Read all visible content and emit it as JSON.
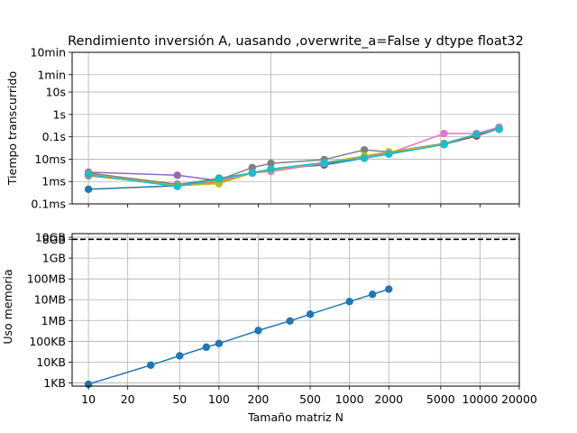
{
  "chart_data": [
    {
      "type": "line",
      "title": "Rendimiento inversión A, uasando ,overwrite_a=False y dtype float32",
      "xlabel": "",
      "ylabel": "Tiempo transcurrido",
      "xscale": "log",
      "yscale": "log",
      "xlim": [
        7.5,
        20000
      ],
      "ylim": [
        0.0001,
        600
      ],
      "yticks": [
        {
          "value": 0.0001,
          "label": "0.1ms"
        },
        {
          "value": 0.001,
          "label": "1ms"
        },
        {
          "value": 0.01,
          "label": "10ms"
        },
        {
          "value": 0.1,
          "label": "0.1s"
        },
        {
          "value": 1,
          "label": "1s"
        },
        {
          "value": 10,
          "label": "10s"
        },
        {
          "value": 60,
          "label": "1min"
        },
        {
          "value": 600,
          "label": "10min"
        }
      ],
      "xgrid": [
        10,
        250,
        5000
      ],
      "grid": true,
      "series": [
        {
          "color": "#1f77b4",
          "x": [
            10,
            48,
            100,
            180,
            250,
            640,
            1300,
            2000,
            5300,
            9400,
            14000
          ],
          "y": [
            0.00045,
            0.00065,
            0.0009,
            0.0024,
            0.0036,
            0.0055,
            0.011,
            0.017,
            0.045,
            0.13,
            0.22
          ]
        },
        {
          "color": "#ff7f0e",
          "x": [
            10,
            48,
            100,
            180,
            250,
            640,
            1300,
            2000,
            5300,
            9400,
            14000
          ],
          "y": [
            0.0018,
            0.0007,
            0.0009,
            0.0025,
            0.0035,
            0.007,
            0.013,
            0.02,
            0.047,
            0.11,
            0.25
          ]
        },
        {
          "color": "#2ca02c",
          "x": [
            10,
            48,
            100,
            180,
            250,
            640,
            1300,
            2000,
            5300,
            9400,
            14000
          ],
          "y": [
            0.0022,
            0.0007,
            0.0014,
            0.0024,
            0.0033,
            0.0065,
            0.012,
            0.018,
            0.045,
            0.12,
            0.22
          ]
        },
        {
          "color": "#d62728",
          "x": [
            10,
            48,
            100,
            180,
            250,
            640,
            1300,
            2000,
            5300,
            9400,
            14000
          ],
          "y": [
            0.0021,
            0.00065,
            0.0012,
            0.0024,
            0.0034,
            0.0065,
            0.012,
            0.018,
            0.046,
            0.11,
            0.23
          ]
        },
        {
          "color": "#9467bd",
          "x": [
            10,
            48,
            100,
            180,
            250,
            640,
            1300,
            2000,
            5300,
            9400,
            14000
          ],
          "y": [
            0.0026,
            0.0019,
            0.0011,
            0.0025,
            0.0033,
            0.0065,
            0.012,
            0.018,
            0.046,
            0.13,
            0.23
          ]
        },
        {
          "color": "#8c564b",
          "x": [
            10,
            48,
            100,
            180,
            250,
            640,
            1300,
            2000,
            5300,
            9400,
            14000
          ],
          "y": [
            0.0022,
            0.0007,
            0.0012,
            0.0024,
            0.0033,
            0.0065,
            0.012,
            0.018,
            0.046,
            0.11,
            0.24
          ]
        },
        {
          "color": "#e377c2",
          "x": [
            10,
            48,
            100,
            180,
            250,
            640,
            1300,
            2000,
            5300,
            9400,
            14000
          ],
          "y": [
            0.0022,
            0.0007,
            0.0011,
            0.0024,
            0.0028,
            0.0065,
            0.012,
            0.018,
            0.14,
            0.14,
            0.27
          ]
        },
        {
          "color": "#7f7f7f",
          "x": [
            10,
            48,
            100,
            180,
            250,
            640,
            1300,
            2000,
            5300,
            9400,
            14000
          ],
          "y": [
            0.0024,
            0.00075,
            0.0012,
            0.0042,
            0.0065,
            0.0095,
            0.026,
            0.021,
            0.05,
            0.13,
            0.23
          ]
        },
        {
          "color": "#bcbd22",
          "x": [
            10,
            48,
            100,
            180,
            250,
            640,
            1300,
            2000,
            5300,
            9400,
            14000
          ],
          "y": [
            0.0021,
            0.00065,
            0.0008,
            0.0024,
            0.0033,
            0.007,
            0.014,
            0.021,
            0.046,
            0.13,
            0.22
          ]
        },
        {
          "color": "#17becf",
          "x": [
            10,
            48,
            100,
            180,
            250,
            640,
            1300,
            2000,
            5300,
            9400,
            14000
          ],
          "y": [
            0.002,
            0.0006,
            0.0013,
            0.0024,
            0.0036,
            0.007,
            0.011,
            0.017,
            0.045,
            0.13,
            0.22
          ]
        }
      ]
    },
    {
      "type": "line",
      "title": "",
      "xlabel": "Tamaño matriz N",
      "ylabel": "Uso memoria",
      "xscale": "log",
      "yscale": "log",
      "xlim": [
        7.5,
        20000
      ],
      "ylim": [
        700,
        15000000000
      ],
      "xticks": [
        {
          "value": 10,
          "label": "10"
        },
        {
          "value": 20,
          "label": "20"
        },
        {
          "value": 50,
          "label": "50"
        },
        {
          "value": 100,
          "label": "100"
        },
        {
          "value": 200,
          "label": "200"
        },
        {
          "value": 500,
          "label": "500"
        },
        {
          "value": 1000,
          "label": "1000"
        },
        {
          "value": 2000,
          "label": "2000"
        },
        {
          "value": 5000,
          "label": "5000"
        },
        {
          "value": 10000,
          "label": "10000"
        },
        {
          "value": 20000,
          "label": "20000"
        }
      ],
      "yticks": [
        {
          "value": 1000,
          "label": "1KB"
        },
        {
          "value": 10000,
          "label": "10KB"
        },
        {
          "value": 100000,
          "label": "100KB"
        },
        {
          "value": 1000000,
          "label": "1MB"
        },
        {
          "value": 10000000,
          "label": "10MB"
        },
        {
          "value": 100000000,
          "label": "100MB"
        },
        {
          "value": 1000000000,
          "label": "1GB"
        },
        {
          "value": 8000000000,
          "label": "8GB"
        },
        {
          "value": 10000000000,
          "label": "10GB"
        }
      ],
      "reference_line": {
        "value": 8000000000,
        "style": "dashed",
        "color": "#000000"
      },
      "grid": true,
      "series": [
        {
          "color": "#1f77b4",
          "x": [
            10,
            30,
            50,
            80,
            100,
            200,
            350,
            500,
            1000,
            1500,
            2000
          ],
          "y": [
            860,
            7100,
            20000,
            52000,
            78000,
            330000,
            950000,
            2000000,
            8100000,
            18000000,
            32000000
          ]
        }
      ]
    }
  ]
}
